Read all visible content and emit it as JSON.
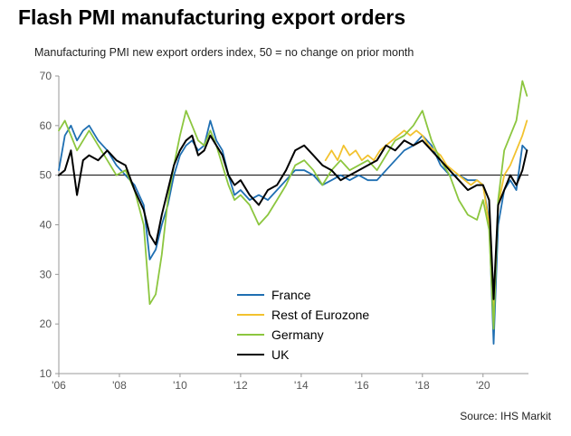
{
  "header": {
    "title": "Flash PMI manufacturing export orders",
    "subtitle": "Manufacturing PMI new export orders index, 50 = no change on prior month"
  },
  "footer": {
    "source": "Source: IHS Markit"
  },
  "chart_data": {
    "type": "line",
    "title": "Flash PMI manufacturing export orders",
    "subtitle": "Manufacturing PMI new export orders index, 50 = no change on prior month",
    "xlabel": "",
    "ylabel": "",
    "x_range": [
      2006.0,
      2021.5
    ],
    "ylim": [
      10,
      70
    ],
    "y_ticks": [
      10,
      20,
      30,
      40,
      50,
      60,
      70
    ],
    "x_ticks": [
      {
        "value": 2006,
        "label": "'06"
      },
      {
        "value": 2008,
        "label": "'08"
      },
      {
        "value": 2010,
        "label": "'10"
      },
      {
        "value": 2012,
        "label": "'12"
      },
      {
        "value": 2014,
        "label": "'14"
      },
      {
        "value": 2016,
        "label": "'16"
      },
      {
        "value": 2018,
        "label": "'18"
      },
      {
        "value": 2020,
        "label": "'20"
      }
    ],
    "reference_line": 50,
    "grid": false,
    "legend_position": "bottom-center",
    "series": [
      {
        "name": "France",
        "color": "#1f6fb2",
        "points": [
          [
            2006.0,
            51
          ],
          [
            2006.2,
            58
          ],
          [
            2006.4,
            60
          ],
          [
            2006.6,
            57
          ],
          [
            2006.8,
            59
          ],
          [
            2007.0,
            60
          ],
          [
            2007.3,
            57
          ],
          [
            2007.6,
            55
          ],
          [
            2007.9,
            52
          ],
          [
            2008.2,
            50
          ],
          [
            2008.5,
            48
          ],
          [
            2008.8,
            44
          ],
          [
            2009.0,
            33
          ],
          [
            2009.2,
            35
          ],
          [
            2009.4,
            40
          ],
          [
            2009.6,
            44
          ],
          [
            2009.8,
            50
          ],
          [
            2010.0,
            54
          ],
          [
            2010.2,
            56
          ],
          [
            2010.4,
            57
          ],
          [
            2010.6,
            55
          ],
          [
            2010.8,
            56
          ],
          [
            2011.0,
            61
          ],
          [
            2011.2,
            57
          ],
          [
            2011.4,
            55
          ],
          [
            2011.6,
            50
          ],
          [
            2011.8,
            46
          ],
          [
            2012.0,
            47
          ],
          [
            2012.3,
            45
          ],
          [
            2012.6,
            46
          ],
          [
            2012.9,
            45
          ],
          [
            2013.2,
            47
          ],
          [
            2013.5,
            49
          ],
          [
            2013.8,
            51
          ],
          [
            2014.1,
            51
          ],
          [
            2014.4,
            50
          ],
          [
            2014.7,
            48
          ],
          [
            2015.0,
            49
          ],
          [
            2015.3,
            50
          ],
          [
            2015.6,
            49
          ],
          [
            2015.9,
            50
          ],
          [
            2016.2,
            49
          ],
          [
            2016.5,
            49
          ],
          [
            2016.8,
            51
          ],
          [
            2017.1,
            53
          ],
          [
            2017.4,
            55
          ],
          [
            2017.7,
            56
          ],
          [
            2018.0,
            58
          ],
          [
            2018.3,
            56
          ],
          [
            2018.6,
            52
          ],
          [
            2018.9,
            50
          ],
          [
            2019.2,
            50
          ],
          [
            2019.5,
            49
          ],
          [
            2019.8,
            49
          ],
          [
            2020.0,
            48
          ],
          [
            2020.2,
            41
          ],
          [
            2020.35,
            16
          ],
          [
            2020.5,
            40
          ],
          [
            2020.7,
            47
          ],
          [
            2020.9,
            49
          ],
          [
            2021.1,
            47
          ],
          [
            2021.3,
            56
          ],
          [
            2021.45,
            55
          ]
        ]
      },
      {
        "name": "Rest of Eurozone",
        "color": "#f2c22e",
        "points": [
          [
            2014.8,
            53
          ],
          [
            2015.0,
            55
          ],
          [
            2015.2,
            53
          ],
          [
            2015.4,
            56
          ],
          [
            2015.6,
            54
          ],
          [
            2015.8,
            55
          ],
          [
            2016.0,
            53
          ],
          [
            2016.2,
            54
          ],
          [
            2016.4,
            53
          ],
          [
            2016.6,
            55
          ],
          [
            2016.8,
            56
          ],
          [
            2017.0,
            57
          ],
          [
            2017.2,
            58
          ],
          [
            2017.4,
            59
          ],
          [
            2017.6,
            58
          ],
          [
            2017.8,
            59
          ],
          [
            2018.0,
            58
          ],
          [
            2018.2,
            56
          ],
          [
            2018.4,
            55
          ],
          [
            2018.6,
            54
          ],
          [
            2018.8,
            52
          ],
          [
            2019.0,
            51
          ],
          [
            2019.2,
            50
          ],
          [
            2019.4,
            49
          ],
          [
            2019.6,
            48
          ],
          [
            2019.8,
            49
          ],
          [
            2020.0,
            48
          ],
          [
            2020.2,
            40
          ],
          [
            2020.35,
            22
          ],
          [
            2020.5,
            44
          ],
          [
            2020.7,
            50
          ],
          [
            2020.9,
            52
          ],
          [
            2021.1,
            55
          ],
          [
            2021.3,
            58
          ],
          [
            2021.45,
            61
          ]
        ]
      },
      {
        "name": "Germany",
        "color": "#8cc63f",
        "points": [
          [
            2006.0,
            59
          ],
          [
            2006.2,
            61
          ],
          [
            2006.4,
            58
          ],
          [
            2006.6,
            55
          ],
          [
            2006.8,
            57
          ],
          [
            2007.0,
            59
          ],
          [
            2007.3,
            56
          ],
          [
            2007.6,
            53
          ],
          [
            2007.9,
            50
          ],
          [
            2008.2,
            51
          ],
          [
            2008.5,
            47
          ],
          [
            2008.8,
            40
          ],
          [
            2009.0,
            24
          ],
          [
            2009.2,
            26
          ],
          [
            2009.4,
            34
          ],
          [
            2009.6,
            45
          ],
          [
            2009.8,
            52
          ],
          [
            2010.0,
            58
          ],
          [
            2010.2,
            63
          ],
          [
            2010.4,
            60
          ],
          [
            2010.6,
            57
          ],
          [
            2010.8,
            56
          ],
          [
            2011.0,
            59
          ],
          [
            2011.2,
            56
          ],
          [
            2011.4,
            52
          ],
          [
            2011.6,
            48
          ],
          [
            2011.8,
            45
          ],
          [
            2012.0,
            46
          ],
          [
            2012.3,
            44
          ],
          [
            2012.6,
            40
          ],
          [
            2012.9,
            42
          ],
          [
            2013.2,
            45
          ],
          [
            2013.5,
            48
          ],
          [
            2013.8,
            52
          ],
          [
            2014.1,
            53
          ],
          [
            2014.4,
            51
          ],
          [
            2014.7,
            48
          ],
          [
            2015.0,
            51
          ],
          [
            2015.3,
            53
          ],
          [
            2015.6,
            51
          ],
          [
            2015.9,
            52
          ],
          [
            2016.2,
            53
          ],
          [
            2016.5,
            51
          ],
          [
            2016.8,
            54
          ],
          [
            2017.1,
            57
          ],
          [
            2017.4,
            58
          ],
          [
            2017.7,
            60
          ],
          [
            2018.0,
            63
          ],
          [
            2018.3,
            57
          ],
          [
            2018.6,
            53
          ],
          [
            2018.9,
            50
          ],
          [
            2019.2,
            45
          ],
          [
            2019.5,
            42
          ],
          [
            2019.8,
            41
          ],
          [
            2020.0,
            45
          ],
          [
            2020.2,
            39
          ],
          [
            2020.35,
            19
          ],
          [
            2020.5,
            45
          ],
          [
            2020.7,
            55
          ],
          [
            2020.9,
            58
          ],
          [
            2021.1,
            61
          ],
          [
            2021.3,
            69
          ],
          [
            2021.45,
            66
          ]
        ]
      },
      {
        "name": "UK",
        "color": "#000000",
        "points": [
          [
            2006.0,
            50
          ],
          [
            2006.2,
            51
          ],
          [
            2006.4,
            55
          ],
          [
            2006.6,
            46
          ],
          [
            2006.8,
            53
          ],
          [
            2007.0,
            54
          ],
          [
            2007.3,
            53
          ],
          [
            2007.6,
            55
          ],
          [
            2007.9,
            53
          ],
          [
            2008.2,
            52
          ],
          [
            2008.5,
            47
          ],
          [
            2008.8,
            43
          ],
          [
            2009.0,
            38
          ],
          [
            2009.2,
            36
          ],
          [
            2009.4,
            42
          ],
          [
            2009.6,
            47
          ],
          [
            2009.8,
            52
          ],
          [
            2010.0,
            55
          ],
          [
            2010.2,
            57
          ],
          [
            2010.4,
            58
          ],
          [
            2010.6,
            54
          ],
          [
            2010.8,
            55
          ],
          [
            2011.0,
            58
          ],
          [
            2011.2,
            56
          ],
          [
            2011.4,
            54
          ],
          [
            2011.6,
            50
          ],
          [
            2011.8,
            48
          ],
          [
            2012.0,
            49
          ],
          [
            2012.3,
            46
          ],
          [
            2012.6,
            44
          ],
          [
            2012.9,
            47
          ],
          [
            2013.2,
            48
          ],
          [
            2013.5,
            51
          ],
          [
            2013.8,
            55
          ],
          [
            2014.1,
            56
          ],
          [
            2014.4,
            54
          ],
          [
            2014.7,
            52
          ],
          [
            2015.0,
            51
          ],
          [
            2015.3,
            49
          ],
          [
            2015.6,
            50
          ],
          [
            2015.9,
            51
          ],
          [
            2016.2,
            52
          ],
          [
            2016.5,
            53
          ],
          [
            2016.8,
            56
          ],
          [
            2017.1,
            55
          ],
          [
            2017.4,
            57
          ],
          [
            2017.7,
            56
          ],
          [
            2018.0,
            57
          ],
          [
            2018.3,
            55
          ],
          [
            2018.6,
            53
          ],
          [
            2018.9,
            51
          ],
          [
            2019.2,
            49
          ],
          [
            2019.5,
            47
          ],
          [
            2019.8,
            48
          ],
          [
            2020.0,
            48
          ],
          [
            2020.2,
            45
          ],
          [
            2020.35,
            25
          ],
          [
            2020.5,
            44
          ],
          [
            2020.7,
            47
          ],
          [
            2020.9,
            50
          ],
          [
            2021.1,
            48
          ],
          [
            2021.3,
            51
          ],
          [
            2021.45,
            55
          ]
        ]
      }
    ]
  }
}
